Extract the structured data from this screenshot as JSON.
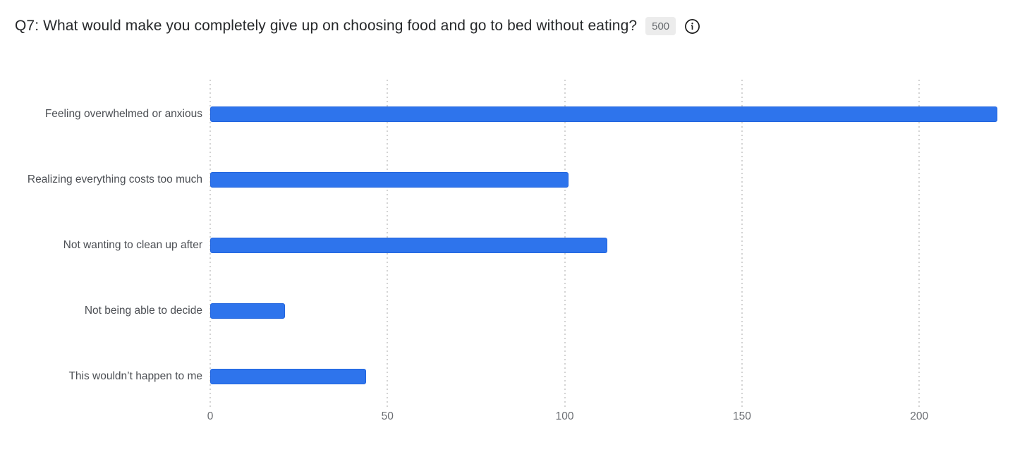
{
  "header": {
    "title": "Q7: What would make you completely give up on choosing food and go to bed without eating?",
    "response_count": "500"
  },
  "chart_data": {
    "type": "bar",
    "orientation": "horizontal",
    "title": "Q7: What would make you completely give up on choosing food and go to bed without eating?",
    "categories": [
      "Feeling overwhelmed or anxious",
      "Realizing everything costs too much",
      "Not wanting to clean up after",
      "Not being able to decide",
      "This wouldn’t happen to me"
    ],
    "values": [
      222,
      101,
      112,
      21,
      44
    ],
    "total_responses": 500,
    "xlabel": "",
    "ylabel": "",
    "xlim": [
      0,
      230.4
    ],
    "x_ticks": [
      0,
      50,
      100,
      150,
      200
    ],
    "grid": "vertical-dotted",
    "legend": "none",
    "bar_color": "#2e74ec",
    "grid_color": "#d3d3d3"
  },
  "colors": {
    "bar": "#2e74ec",
    "bar_border": "#2265de",
    "title_text": "#26282a",
    "category_label": "#4c4f54",
    "tick_label": "#6b6e73",
    "badge_bg": "#ececec",
    "badge_text": "#666a6e",
    "background": "#ffffff"
  }
}
